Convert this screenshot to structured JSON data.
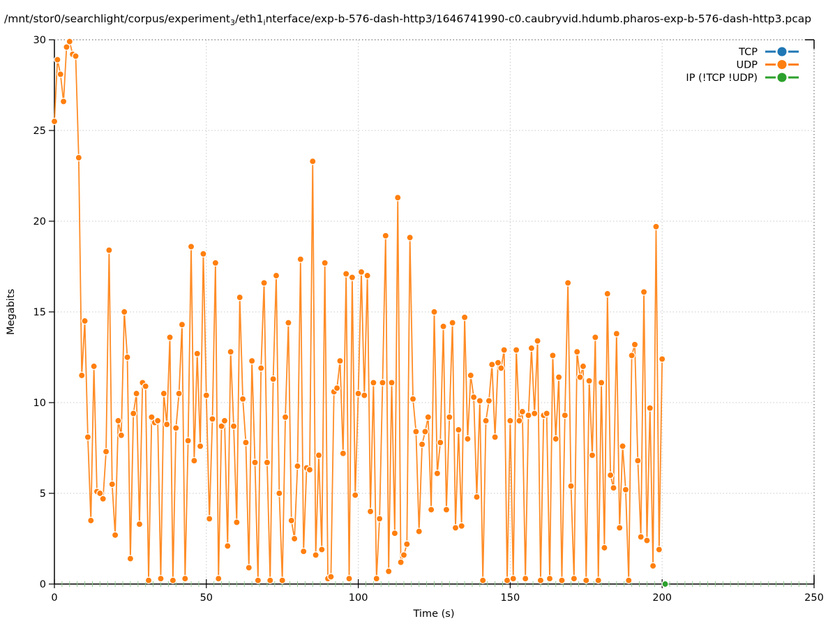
{
  "title_parts": {
    "p1": "/mnt/stor0/searchlight/corpus/experiment",
    "s1": "3",
    "p2": "/eth1",
    "s2": "i",
    "p3": "nterface/exp-b-576-dash-http3/1646741990-c0.caubryvid.hdumb.pharos-exp-b-576-dash-http3.pcap"
  },
  "chart_data": {
    "type": "line",
    "title": "/mnt/stor0/searchlight/corpus/experiment_3/eth1_interface/exp-b-576-dash-http3/1646741990-c0.caubryvid.hdumb.pharos-exp-b-576-dash-http3.pcap",
    "xlabel": "Time (s)",
    "ylabel": "Megabits",
    "xlim": [
      0,
      250
    ],
    "ylim": [
      0,
      30
    ],
    "xticks": [
      0,
      50,
      100,
      150,
      200,
      250
    ],
    "yticks": [
      0,
      5,
      10,
      15,
      20,
      25,
      30
    ],
    "minor_xtick_step": 2.5,
    "grid": true,
    "legend_position": "top-right",
    "grid_color": "#c8c8c8",
    "minor_tick_color": "#90cc90",
    "series": [
      {
        "name": "TCP",
        "color": "#1f77b4",
        "points": []
      },
      {
        "name": "UDP",
        "color": "#ff7f0e",
        "points": [
          [
            0,
            25.5
          ],
          [
            1,
            28.9
          ],
          [
            2,
            28.1
          ],
          [
            3,
            26.6
          ],
          [
            4,
            29.6
          ],
          [
            5,
            29.9
          ],
          [
            6,
            29.2
          ],
          [
            7,
            29.1
          ],
          [
            8,
            23.5
          ],
          [
            9,
            11.5
          ],
          [
            10,
            14.5
          ],
          [
            11,
            8.1
          ],
          [
            12,
            3.5
          ],
          [
            13,
            12.0
          ],
          [
            14,
            5.1
          ],
          [
            15,
            5.0
          ],
          [
            16,
            4.7
          ],
          [
            17,
            7.3
          ],
          [
            18,
            18.4
          ],
          [
            19,
            5.5
          ],
          [
            20,
            2.7
          ],
          [
            21,
            9.0
          ],
          [
            22,
            8.2
          ],
          [
            23,
            15.0
          ],
          [
            24,
            12.5
          ],
          [
            25,
            1.4
          ],
          [
            26,
            9.4
          ],
          [
            27,
            10.5
          ],
          [
            28,
            3.3
          ],
          [
            29,
            11.1
          ],
          [
            30,
            10.9
          ],
          [
            31,
            0.2
          ],
          [
            32,
            9.2
          ],
          [
            33,
            8.9
          ],
          [
            34,
            9.0
          ],
          [
            35,
            0.3
          ],
          [
            36,
            10.5
          ],
          [
            37,
            8.8
          ],
          [
            38,
            13.6
          ],
          [
            39,
            0.2
          ],
          [
            40,
            8.6
          ],
          [
            41,
            10.5
          ],
          [
            42,
            14.3
          ],
          [
            43,
            0.3
          ],
          [
            44,
            7.9
          ],
          [
            45,
            18.6
          ],
          [
            46,
            6.8
          ],
          [
            47,
            12.7
          ],
          [
            48,
            7.6
          ],
          [
            49,
            18.2
          ],
          [
            50,
            10.4
          ],
          [
            51,
            3.6
          ],
          [
            52,
            9.1
          ],
          [
            53,
            17.7
          ],
          [
            54,
            0.3
          ],
          [
            55,
            8.7
          ],
          [
            56,
            9.0
          ],
          [
            57,
            2.1
          ],
          [
            58,
            12.8
          ],
          [
            59,
            8.7
          ],
          [
            60,
            3.4
          ],
          [
            61,
            15.8
          ],
          [
            62,
            10.2
          ],
          [
            63,
            7.8
          ],
          [
            64,
            0.9
          ],
          [
            65,
            12.3
          ],
          [
            66,
            6.7
          ],
          [
            67,
            0.2
          ],
          [
            68,
            11.9
          ],
          [
            69,
            16.6
          ],
          [
            70,
            6.7
          ],
          [
            71,
            0.2
          ],
          [
            72,
            11.3
          ],
          [
            73,
            17.0
          ],
          [
            74,
            5.0
          ],
          [
            75,
            0.2
          ],
          [
            76,
            9.2
          ],
          [
            77,
            14.4
          ],
          [
            78,
            3.5
          ],
          [
            79,
            2.5
          ],
          [
            80,
            6.5
          ],
          [
            81,
            17.9
          ],
          [
            82,
            1.8
          ],
          [
            83,
            6.4
          ],
          [
            84,
            6.3
          ],
          [
            85,
            23.3
          ],
          [
            86,
            1.6
          ],
          [
            87,
            7.1
          ],
          [
            88,
            1.9
          ],
          [
            89,
            17.7
          ],
          [
            90,
            0.3
          ],
          [
            91,
            0.4
          ],
          [
            92,
            10.6
          ],
          [
            93,
            10.8
          ],
          [
            94,
            12.3
          ],
          [
            95,
            7.2
          ],
          [
            96,
            17.1
          ],
          [
            97,
            0.3
          ],
          [
            98,
            16.9
          ],
          [
            99,
            4.9
          ],
          [
            100,
            10.5
          ],
          [
            101,
            17.2
          ],
          [
            102,
            10.4
          ],
          [
            103,
            17.0
          ],
          [
            104,
            4.0
          ],
          [
            105,
            11.1
          ],
          [
            106,
            0.3
          ],
          [
            107,
            3.6
          ],
          [
            108,
            11.1
          ],
          [
            109,
            19.2
          ],
          [
            110,
            0.7
          ],
          [
            111,
            11.1
          ],
          [
            112,
            2.8
          ],
          [
            113,
            21.3
          ],
          [
            114,
            1.2
          ],
          [
            115,
            1.6
          ],
          [
            116,
            2.2
          ],
          [
            117,
            19.1
          ],
          [
            118,
            10.2
          ],
          [
            119,
            8.4
          ],
          [
            120,
            2.9
          ],
          [
            121,
            7.7
          ],
          [
            122,
            8.4
          ],
          [
            123,
            9.2
          ],
          [
            124,
            4.1
          ],
          [
            125,
            15.0
          ],
          [
            126,
            6.1
          ],
          [
            127,
            7.8
          ],
          [
            128,
            14.2
          ],
          [
            129,
            4.1
          ],
          [
            130,
            9.2
          ],
          [
            131,
            14.4
          ],
          [
            132,
            3.1
          ],
          [
            133,
            8.5
          ],
          [
            134,
            3.2
          ],
          [
            135,
            14.7
          ],
          [
            136,
            8.0
          ],
          [
            137,
            11.5
          ],
          [
            138,
            10.3
          ],
          [
            139,
            4.8
          ],
          [
            140,
            10.1
          ],
          [
            141,
            0.2
          ],
          [
            142,
            9.0
          ],
          [
            143,
            10.1
          ],
          [
            144,
            12.1
          ],
          [
            145,
            8.1
          ],
          [
            146,
            12.2
          ],
          [
            147,
            11.9
          ],
          [
            148,
            12.9
          ],
          [
            149,
            0.2
          ],
          [
            150,
            9.0
          ],
          [
            151,
            0.3
          ],
          [
            152,
            12.9
          ],
          [
            153,
            9.0
          ],
          [
            154,
            9.5
          ],
          [
            155,
            0.3
          ],
          [
            156,
            9.3
          ],
          [
            157,
            13.0
          ],
          [
            158,
            9.4
          ],
          [
            159,
            13.4
          ],
          [
            160,
            0.2
          ],
          [
            161,
            9.3
          ],
          [
            162,
            9.4
          ],
          [
            163,
            0.3
          ],
          [
            164,
            12.6
          ],
          [
            165,
            8.0
          ],
          [
            166,
            11.4
          ],
          [
            167,
            0.2
          ],
          [
            168,
            9.3
          ],
          [
            169,
            16.6
          ],
          [
            170,
            5.4
          ],
          [
            171,
            0.3
          ],
          [
            172,
            12.8
          ],
          [
            173,
            11.4
          ],
          [
            174,
            12.0
          ],
          [
            175,
            0.2
          ],
          [
            176,
            11.2
          ],
          [
            177,
            7.1
          ],
          [
            178,
            13.6
          ],
          [
            179,
            0.2
          ],
          [
            180,
            11.1
          ],
          [
            181,
            2.0
          ],
          [
            182,
            16.0
          ],
          [
            183,
            6.0
          ],
          [
            184,
            5.3
          ],
          [
            185,
            13.8
          ],
          [
            186,
            3.1
          ],
          [
            187,
            7.6
          ],
          [
            188,
            5.2
          ],
          [
            189,
            0.2
          ],
          [
            190,
            12.6
          ],
          [
            191,
            13.2
          ],
          [
            192,
            6.8
          ],
          [
            193,
            2.6
          ],
          [
            194,
            16.1
          ],
          [
            195,
            2.4
          ],
          [
            196,
            9.7
          ],
          [
            197,
            1.0
          ],
          [
            198,
            19.7
          ],
          [
            199,
            1.9
          ],
          [
            200,
            12.4
          ]
        ]
      },
      {
        "name": "IP (!TCP  !UDP)",
        "color": "#2ca02c",
        "points": [
          [
            201,
            0
          ]
        ]
      }
    ]
  }
}
